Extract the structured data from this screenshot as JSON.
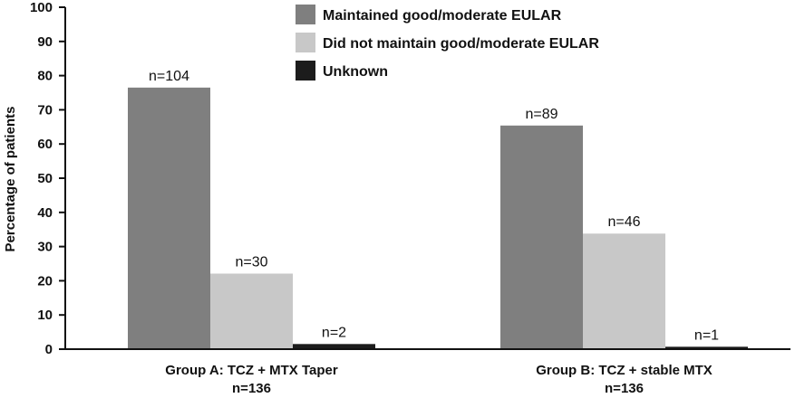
{
  "chart_data": {
    "type": "bar",
    "ylabel": "Percentage of patients",
    "ylim": [
      0,
      100
    ],
    "yticks": [
      0,
      10,
      20,
      30,
      40,
      50,
      60,
      70,
      80,
      90,
      100
    ],
    "grid": false,
    "legend_position": "top-center",
    "categories": [
      {
        "line1": "Group A: TCZ + MTX Taper",
        "line2": "n=136"
      },
      {
        "line1": "Group B: TCZ + stable MTX",
        "line2": "n=136"
      }
    ],
    "series": [
      {
        "name": "Maintained good/moderate EULAR",
        "color": "#7f7f7f",
        "values": [
          76.5,
          65.4
        ],
        "labels": [
          "n=104",
          "n=89"
        ]
      },
      {
        "name": "Did not maintain good/moderate EULAR",
        "color": "#c8c8c8",
        "values": [
          22.1,
          33.8
        ],
        "labels": [
          "n=30",
          "n=46"
        ]
      },
      {
        "name": "Unknown",
        "color": "#1c1c1c",
        "values": [
          1.5,
          0.7
        ],
        "labels": [
          "n=2",
          "n=1"
        ]
      }
    ]
  }
}
